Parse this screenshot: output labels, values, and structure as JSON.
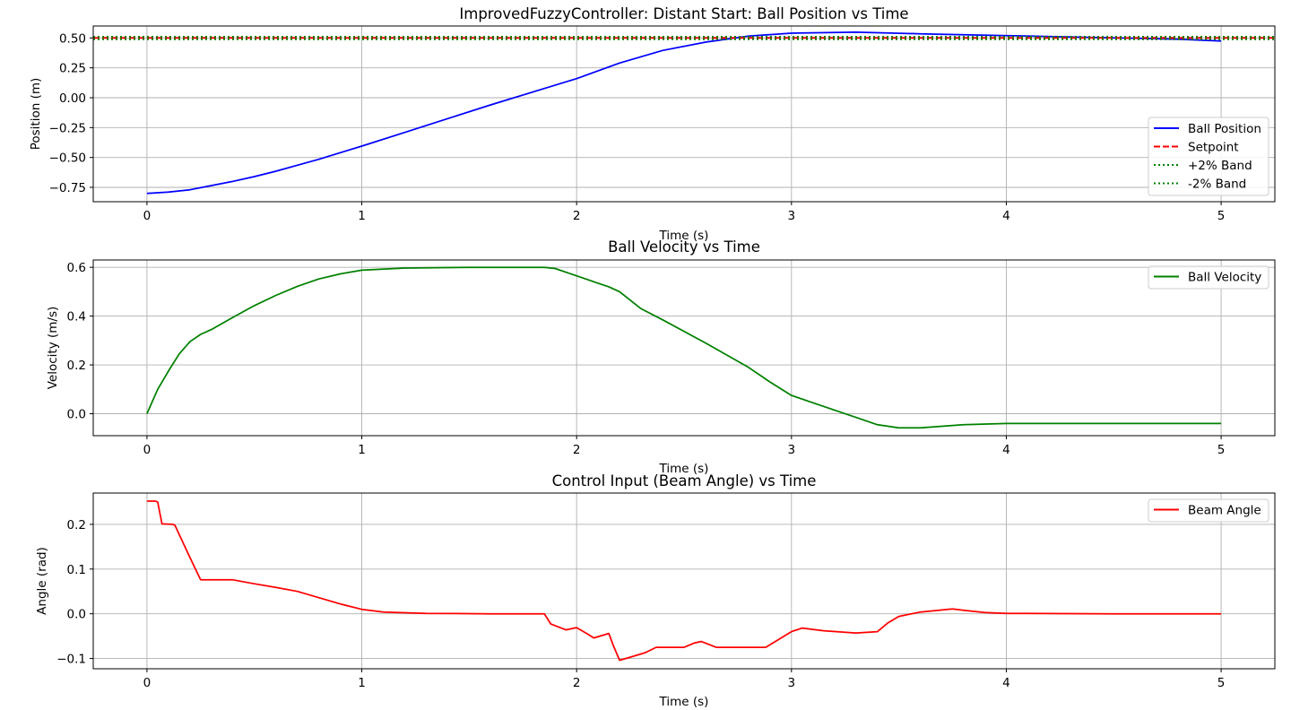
{
  "chart_data": [
    {
      "type": "line",
      "title": "ImprovedFuzzyController: Distant Start: Ball Position vs Time",
      "xlabel": "Time (s)",
      "ylabel": "Position (m)",
      "xlim": [
        -0.25,
        5.25
      ],
      "ylim": [
        -0.87,
        0.6
      ],
      "xticks": [
        0,
        1,
        2,
        3,
        4,
        5
      ],
      "yticks": [
        -0.75,
        -0.5,
        -0.25,
        0.0,
        0.25,
        0.5
      ],
      "ytick_labels": [
        "−0.75",
        "−0.50",
        "−0.25",
        "0.00",
        "0.25",
        "0.50"
      ],
      "grid": true,
      "legend_position": "lower-right",
      "series": [
        {
          "name": "Ball Position",
          "color": "#0000ff",
          "style": "solid",
          "x": [
            0,
            0.1,
            0.2,
            0.3,
            0.4,
            0.5,
            0.6,
            0.7,
            0.8,
            0.9,
            1.0,
            1.2,
            1.4,
            1.6,
            1.8,
            2.0,
            2.2,
            2.4,
            2.6,
            2.8,
            3.0,
            3.3,
            3.6,
            4.0,
            4.4,
            4.8,
            5.0
          ],
          "y": [
            -0.8,
            -0.79,
            -0.77,
            -0.735,
            -0.7,
            -0.66,
            -0.615,
            -0.565,
            -0.515,
            -0.46,
            -0.405,
            -0.29,
            -0.175,
            -0.06,
            0.05,
            0.16,
            0.29,
            0.395,
            0.465,
            0.515,
            0.54,
            0.548,
            0.535,
            0.52,
            0.505,
            0.49,
            0.475
          ]
        },
        {
          "name": "Setpoint",
          "color": "#ff0000",
          "style": "dashed",
          "x": [
            -0.25,
            5.25
          ],
          "y": [
            0.5,
            0.5
          ]
        },
        {
          "name": "+2% Band",
          "color": "#008000",
          "style": "dotted",
          "x": [
            -0.25,
            5.25
          ],
          "y": [
            0.51,
            0.51
          ]
        },
        {
          "name": "-2% Band",
          "color": "#008000",
          "style": "dotted",
          "x": [
            -0.25,
            5.25
          ],
          "y": [
            0.49,
            0.49
          ]
        }
      ]
    },
    {
      "type": "line",
      "title": "Ball Velocity vs Time",
      "xlabel": "Time (s)",
      "ylabel": "Velocity (m/s)",
      "xlim": [
        -0.25,
        5.25
      ],
      "ylim": [
        -0.09,
        0.63
      ],
      "xticks": [
        0,
        1,
        2,
        3,
        4,
        5
      ],
      "yticks": [
        0.0,
        0.2,
        0.4,
        0.6
      ],
      "ytick_labels": [
        "0.0",
        "0.2",
        "0.4",
        "0.6"
      ],
      "grid": true,
      "legend_position": "upper-right",
      "series": [
        {
          "name": "Ball Velocity",
          "color": "#008000",
          "style": "solid",
          "x": [
            0,
            0.05,
            0.1,
            0.15,
            0.2,
            0.25,
            0.3,
            0.4,
            0.5,
            0.6,
            0.7,
            0.8,
            0.9,
            1.0,
            1.2,
            1.5,
            1.85,
            1.9,
            2.0,
            2.1,
            2.15,
            2.2,
            2.3,
            2.4,
            2.6,
            2.8,
            2.9,
            3.0,
            3.1,
            3.2,
            3.3,
            3.4,
            3.5,
            3.6,
            3.8,
            4.0,
            4.4,
            5.0
          ],
          "y": [
            0.0,
            0.1,
            0.175,
            0.245,
            0.295,
            0.325,
            0.345,
            0.395,
            0.443,
            0.485,
            0.522,
            0.552,
            0.573,
            0.588,
            0.597,
            0.6,
            0.6,
            0.595,
            0.565,
            0.535,
            0.52,
            0.5,
            0.43,
            0.385,
            0.29,
            0.19,
            0.13,
            0.075,
            0.045,
            0.015,
            -0.015,
            -0.045,
            -0.058,
            -0.058,
            -0.045,
            -0.04,
            -0.04,
            -0.04
          ]
        }
      ]
    },
    {
      "type": "line",
      "title": "Control Input (Beam Angle) vs Time",
      "xlabel": "Time (s)",
      "ylabel": "Angle (rad)",
      "xlim": [
        -0.25,
        5.25
      ],
      "ylim": [
        -0.123,
        0.27
      ],
      "xticks": [
        0,
        1,
        2,
        3,
        4,
        5
      ],
      "yticks": [
        -0.1,
        0.0,
        0.1,
        0.2
      ],
      "ytick_labels": [
        "−0.1",
        "0.0",
        "0.1",
        "0.2"
      ],
      "grid": true,
      "legend_position": "upper-right",
      "series": [
        {
          "name": "Beam Angle",
          "color": "#ff0000",
          "style": "solid",
          "x": [
            0,
            0.04,
            0.05,
            0.07,
            0.12,
            0.13,
            0.2,
            0.25,
            0.4,
            0.5,
            0.6,
            0.7,
            0.8,
            0.9,
            1.0,
            1.1,
            1.3,
            1.6,
            1.85,
            1.88,
            1.95,
            2.0,
            2.05,
            2.08,
            2.15,
            2.17,
            2.2,
            2.23,
            2.32,
            2.37,
            2.5,
            2.55,
            2.58,
            2.65,
            2.7,
            2.88,
            3.0,
            3.05,
            3.15,
            3.3,
            3.4,
            3.45,
            3.5,
            3.6,
            3.75,
            3.8,
            3.9,
            4.0,
            4.5,
            5.0
          ],
          "y": [
            0.252,
            0.252,
            0.25,
            0.201,
            0.2,
            0.198,
            0.126,
            0.076,
            0.076,
            0.067,
            0.059,
            0.05,
            0.036,
            0.022,
            0.01,
            0.004,
            0.001,
            0.0,
            0.0,
            -0.023,
            -0.036,
            -0.031,
            -0.045,
            -0.054,
            -0.044,
            -0.07,
            -0.104,
            -0.1,
            -0.087,
            -0.075,
            -0.075,
            -0.065,
            -0.062,
            -0.075,
            -0.075,
            -0.075,
            -0.04,
            -0.032,
            -0.038,
            -0.043,
            -0.04,
            -0.02,
            -0.006,
            0.004,
            0.011,
            0.008,
            0.003,
            0.001,
            0.0,
            0.0
          ]
        }
      ]
    }
  ]
}
